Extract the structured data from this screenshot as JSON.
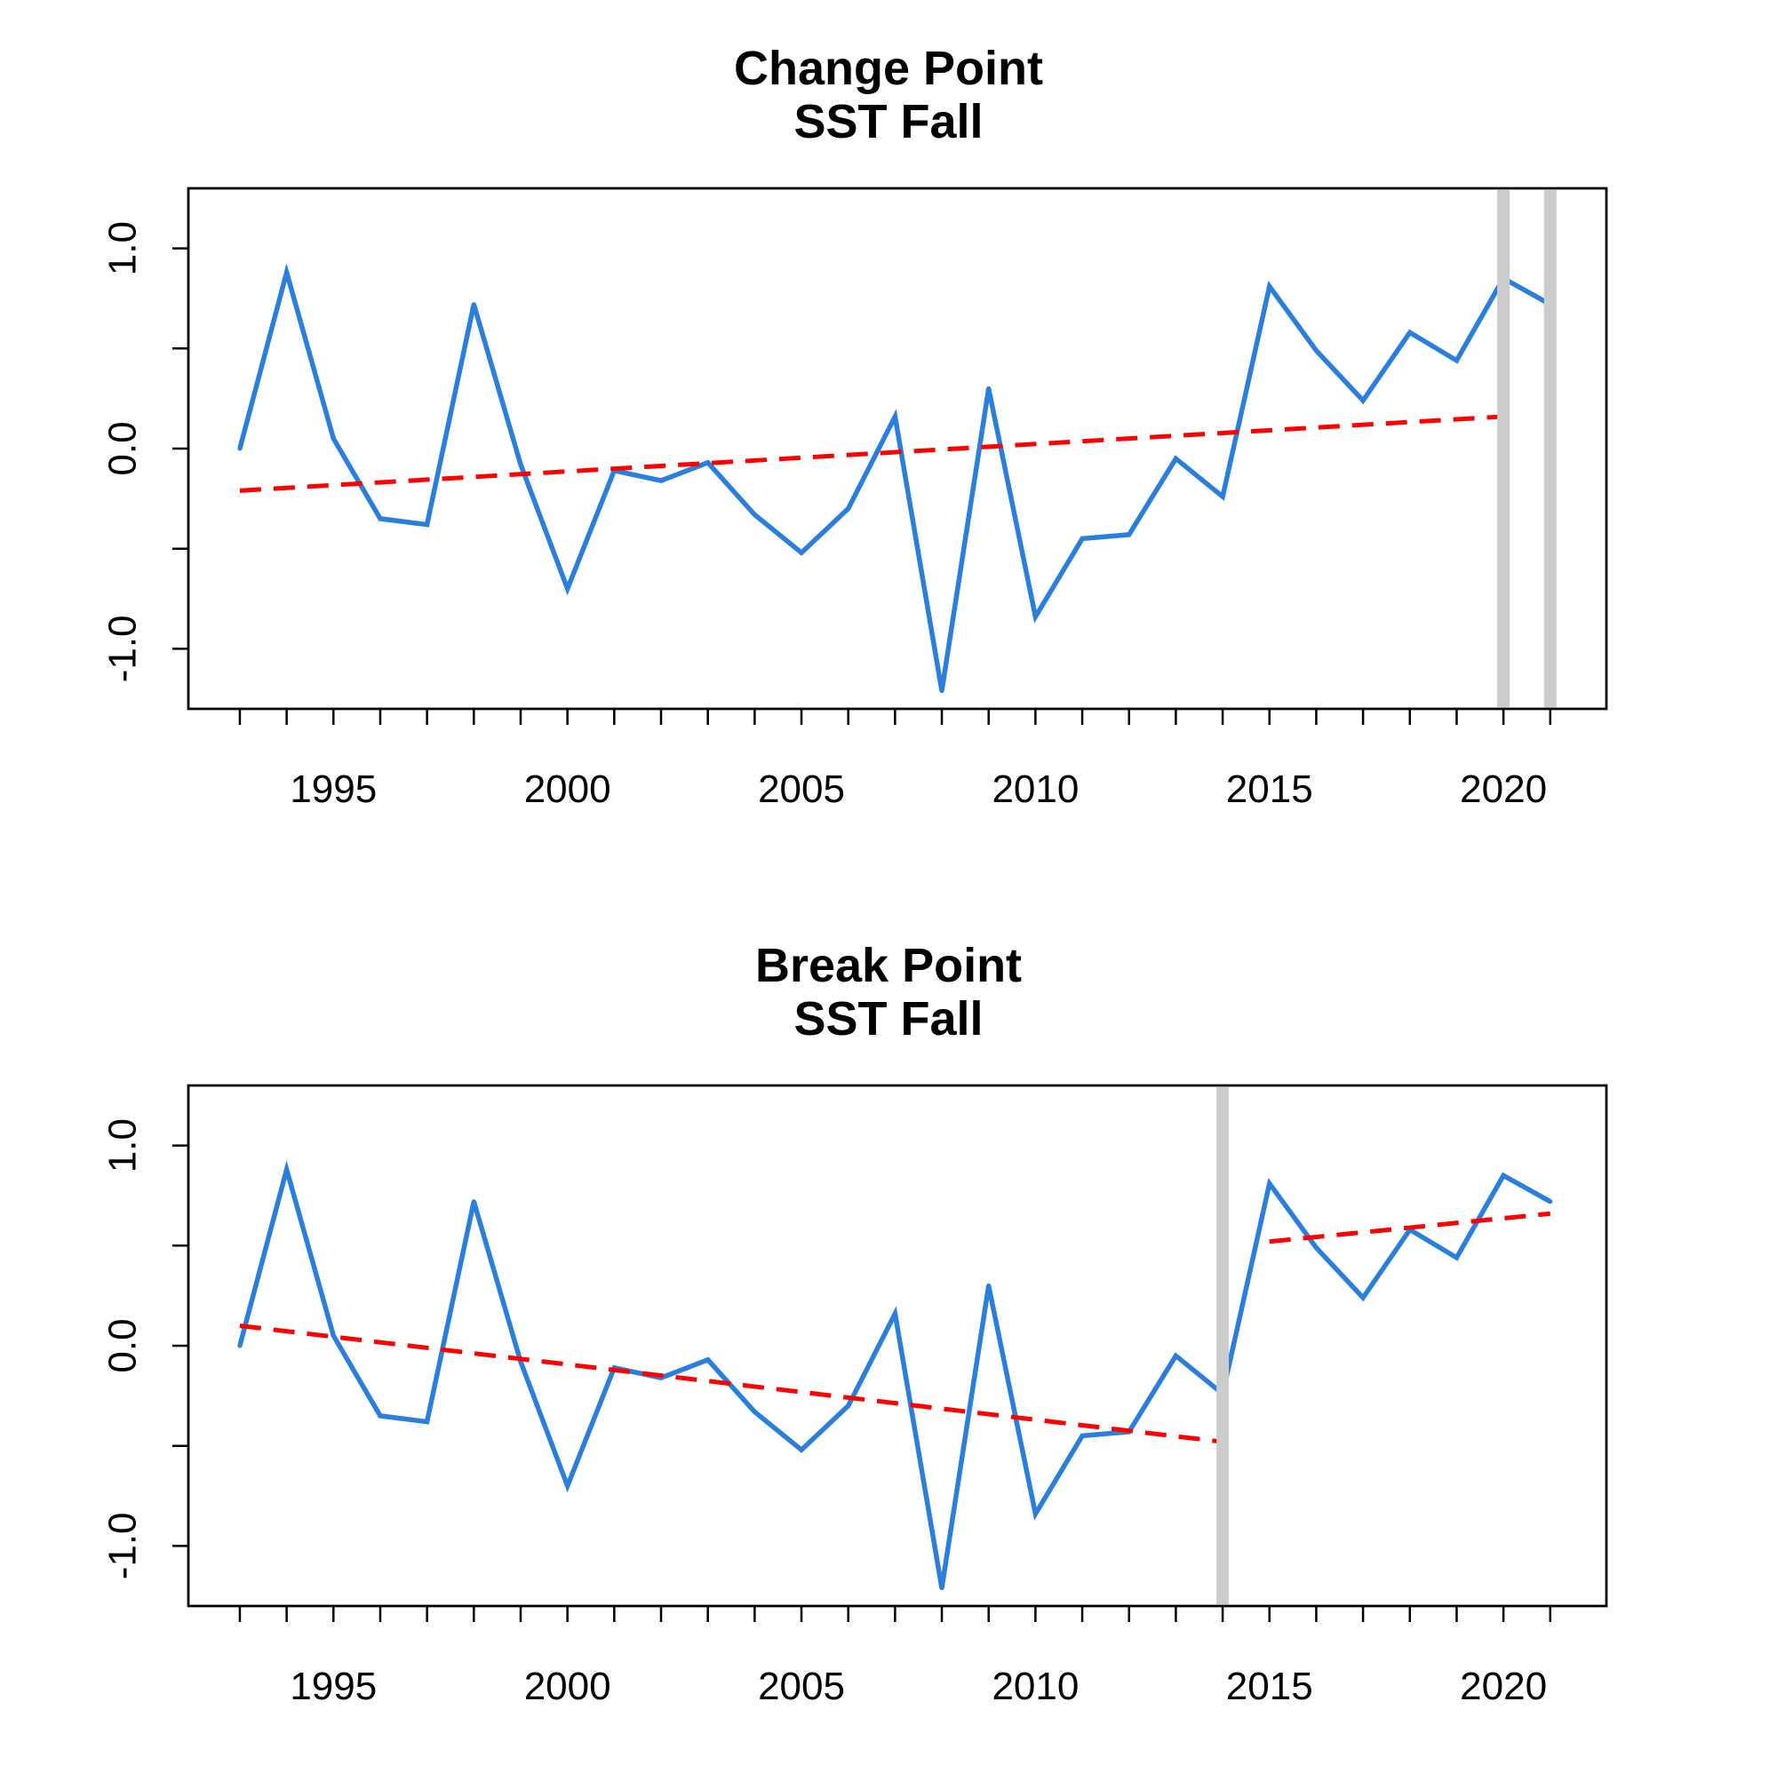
{
  "chart_data": [
    {
      "type": "line",
      "title": "Change Point",
      "subtitle": "SST Fall",
      "xlabel": "",
      "ylabel": "",
      "xlim": [
        1991.9,
        2022.2
      ],
      "ylim": [
        -1.3,
        1.3
      ],
      "x_ticks": [
        1993,
        1994,
        1995,
        1996,
        1997,
        1998,
        1999,
        2000,
        2001,
        2002,
        2003,
        2004,
        2005,
        2006,
        2007,
        2008,
        2009,
        2010,
        2011,
        2012,
        2013,
        2014,
        2015,
        2016,
        2017,
        2018,
        2019,
        2020,
        2021
      ],
      "x_tick_labels": [
        {
          "x": 1995,
          "label": "1995"
        },
        {
          "x": 2000,
          "label": "2000"
        },
        {
          "x": 2005,
          "label": "2005"
        },
        {
          "x": 2010,
          "label": "2010"
        },
        {
          "x": 2015,
          "label": "2015"
        },
        {
          "x": 2020,
          "label": "2020"
        }
      ],
      "y_ticks": [
        -1.0,
        -0.5,
        0.0,
        0.5,
        1.0
      ],
      "y_tick_labels": [
        {
          "y": -1.0,
          "label": "-1.0"
        },
        {
          "y": 0.0,
          "label": "0.0"
        },
        {
          "y": 1.0,
          "label": "1.0"
        }
      ],
      "grid": false,
      "legend": "none",
      "series": [
        {
          "color": "#2b7fdc",
          "x": [
            1993,
            1994,
            1995,
            1996,
            1997,
            1998,
            1999,
            2000,
            2001,
            2002,
            2003,
            2004,
            2005,
            2006,
            2007,
            2008,
            2009,
            2010,
            2011,
            2012,
            2013,
            2014,
            2015,
            2016,
            2017,
            2018,
            2019,
            2020,
            2021
          ],
          "values": [
            0.0,
            0.88,
            0.05,
            -0.35,
            -0.38,
            0.72,
            -0.08,
            -0.7,
            -0.11,
            -0.16,
            -0.07,
            -0.33,
            -0.52,
            -0.3,
            0.16,
            -1.21,
            0.3,
            -0.84,
            -0.45,
            -0.43,
            -0.05,
            -0.24,
            0.81,
            0.49,
            0.24,
            0.58,
            0.44,
            0.85,
            0.72
          ]
        }
      ],
      "trend_lines": [
        {
          "color": "#ff0000",
          "style": "dashed",
          "x": [
            1993,
            2020
          ],
          "y": [
            -0.21,
            0.16
          ]
        }
      ],
      "break_lines": [
        {
          "x": 2020,
          "color": "#cccccc"
        },
        {
          "x": 2021,
          "color": "#cccccc"
        }
      ]
    },
    {
      "type": "line",
      "title": "Break Point",
      "subtitle": "SST Fall",
      "xlabel": "",
      "ylabel": "",
      "xlim": [
        1991.9,
        2022.2
      ],
      "ylim": [
        -1.3,
        1.3
      ],
      "x_ticks": [
        1993,
        1994,
        1995,
        1996,
        1997,
        1998,
        1999,
        2000,
        2001,
        2002,
        2003,
        2004,
        2005,
        2006,
        2007,
        2008,
        2009,
        2010,
        2011,
        2012,
        2013,
        2014,
        2015,
        2016,
        2017,
        2018,
        2019,
        2020,
        2021
      ],
      "x_tick_labels": [
        {
          "x": 1995,
          "label": "1995"
        },
        {
          "x": 2000,
          "label": "2000"
        },
        {
          "x": 2005,
          "label": "2005"
        },
        {
          "x": 2010,
          "label": "2010"
        },
        {
          "x": 2015,
          "label": "2015"
        },
        {
          "x": 2020,
          "label": "2020"
        }
      ],
      "y_ticks": [
        -1.0,
        -0.5,
        0.0,
        0.5,
        1.0
      ],
      "y_tick_labels": [
        {
          "y": -1.0,
          "label": "-1.0"
        },
        {
          "y": 0.0,
          "label": "0.0"
        },
        {
          "y": 1.0,
          "label": "1.0"
        }
      ],
      "grid": false,
      "legend": "none",
      "series": [
        {
          "color": "#2b7fdc",
          "x": [
            1993,
            1994,
            1995,
            1996,
            1997,
            1998,
            1999,
            2000,
            2001,
            2002,
            2003,
            2004,
            2005,
            2006,
            2007,
            2008,
            2009,
            2010,
            2011,
            2012,
            2013,
            2014,
            2015,
            2016,
            2017,
            2018,
            2019,
            2020,
            2021
          ],
          "values": [
            0.0,
            0.88,
            0.05,
            -0.35,
            -0.38,
            0.72,
            -0.08,
            -0.7,
            -0.11,
            -0.16,
            -0.07,
            -0.33,
            -0.52,
            -0.3,
            0.16,
            -1.21,
            0.3,
            -0.84,
            -0.45,
            -0.43,
            -0.05,
            -0.24,
            0.81,
            0.49,
            0.24,
            0.58,
            0.44,
            0.85,
            0.72
          ]
        }
      ],
      "trend_lines": [
        {
          "color": "#ff0000",
          "style": "dashed",
          "x": [
            1993,
            2014
          ],
          "y": [
            0.1,
            -0.48
          ]
        },
        {
          "color": "#ff0000",
          "style": "dashed",
          "x": [
            2015,
            2021
          ],
          "y": [
            0.52,
            0.66
          ]
        }
      ],
      "break_lines": [
        {
          "x": 2014,
          "color": "#cccccc"
        }
      ]
    }
  ]
}
